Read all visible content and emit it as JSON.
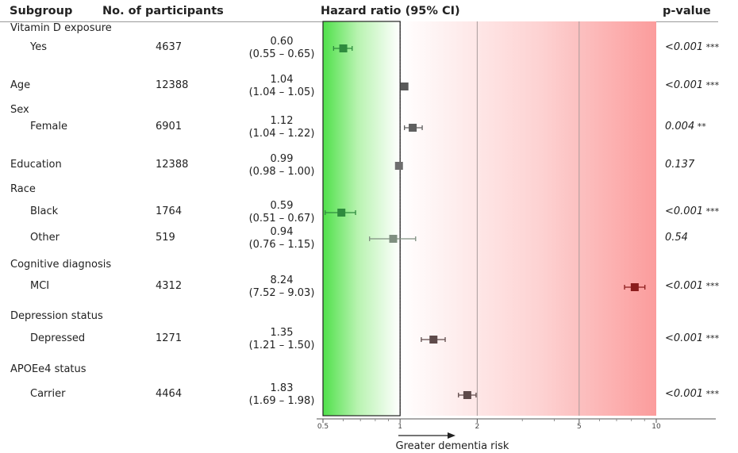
{
  "headers": {
    "subgroup": "Subgroup",
    "participants": "No. of participants",
    "hazard": "Hazard ratio (95% CI)",
    "pvalue": "p-value"
  },
  "rows": [
    {
      "kind": "group",
      "label": "Vitamin D exposure"
    },
    {
      "kind": "sub",
      "label": "Yes",
      "n": "4637",
      "hr": "0.60",
      "ci": "(0.55 – 0.65)",
      "p": "<0.001",
      "stars": "***"
    },
    {
      "kind": "main",
      "label": "Age",
      "n": "12388",
      "hr": "1.04",
      "ci": "(1.04 – 1.05)",
      "p": "<0.001",
      "stars": "***"
    },
    {
      "kind": "group",
      "label": "Sex"
    },
    {
      "kind": "sub",
      "label": "Female",
      "n": "6901",
      "hr": "1.12",
      "ci": "(1.04 – 1.22)",
      "p": "0.004",
      "stars": "**"
    },
    {
      "kind": "main",
      "label": "Education",
      "n": "12388",
      "hr": "0.99",
      "ci": "(0.98 – 1.00)",
      "p": "0.137",
      "stars": ""
    },
    {
      "kind": "group",
      "label": "Race"
    },
    {
      "kind": "sub",
      "label": "Black",
      "n": "1764",
      "hr": "0.59",
      "ci": "(0.51 – 0.67)",
      "p": "<0.001",
      "stars": "***"
    },
    {
      "kind": "sub",
      "label": "Other",
      "n": "519",
      "hr": "0.94",
      "ci": "(0.76 – 1.15)",
      "p": "0.54",
      "stars": ""
    },
    {
      "kind": "group",
      "label": "Cognitive diagnosis"
    },
    {
      "kind": "sub",
      "label": "MCI",
      "n": "4312",
      "hr": "8.24",
      "ci": "(7.52 – 9.03)",
      "p": "<0.001",
      "stars": "***"
    },
    {
      "kind": "group",
      "label": "Depression status"
    },
    {
      "kind": "sub",
      "label": "Depressed",
      "n": "1271",
      "hr": "1.35",
      "ci": "(1.21 – 1.50)",
      "p": "<0.001",
      "stars": "***"
    },
    {
      "kind": "group",
      "label": "APOEe4 status"
    },
    {
      "kind": "sub",
      "label": "Carrier",
      "n": "4464",
      "hr": "1.83",
      "ci": "(1.69 – 1.98)",
      "p": "<0.001",
      "stars": "***"
    }
  ],
  "chart_data": {
    "type": "forest",
    "title": "Hazard ratio (95% CI)",
    "xlabel": "Greater dementia risk",
    "xscale": "log",
    "xlim": [
      0.5,
      10
    ],
    "ticks": [
      0.5,
      1,
      2,
      5,
      10
    ],
    "tick_labels": [
      "0.5",
      "1",
      "2",
      "5",
      "10"
    ],
    "reference_line": 1,
    "grid_x": [
      1,
      2,
      5
    ],
    "points": [
      {
        "label": "Vitamin D exposure: Yes",
        "hr": 0.6,
        "lo": 0.55,
        "hi": 0.65,
        "color": "#2e8b3e"
      },
      {
        "label": "Age",
        "hr": 1.04,
        "lo": 1.04,
        "hi": 1.05,
        "color": "#5a5a5a"
      },
      {
        "label": "Sex: Female",
        "hr": 1.12,
        "lo": 1.04,
        "hi": 1.22,
        "color": "#5f5f5f"
      },
      {
        "label": "Education",
        "hr": 0.99,
        "lo": 0.98,
        "hi": 1.0,
        "color": "#6e6e6e"
      },
      {
        "label": "Race: Black",
        "hr": 0.59,
        "lo": 0.51,
        "hi": 0.67,
        "color": "#2e8b3e"
      },
      {
        "label": "Race: Other",
        "hr": 0.94,
        "lo": 0.76,
        "hi": 1.15,
        "color": "#7f8f80"
      },
      {
        "label": "Cognitive diagnosis: MCI",
        "hr": 8.24,
        "lo": 7.52,
        "hi": 9.03,
        "color": "#8b1c1c"
      },
      {
        "label": "Depression status: Depressed",
        "hr": 1.35,
        "lo": 1.21,
        "hi": 1.5,
        "color": "#5e4a4a"
      },
      {
        "label": "APOEe4 status: Carrier",
        "hr": 1.83,
        "lo": 1.69,
        "hi": 1.98,
        "color": "#5e4a4a"
      }
    ]
  }
}
